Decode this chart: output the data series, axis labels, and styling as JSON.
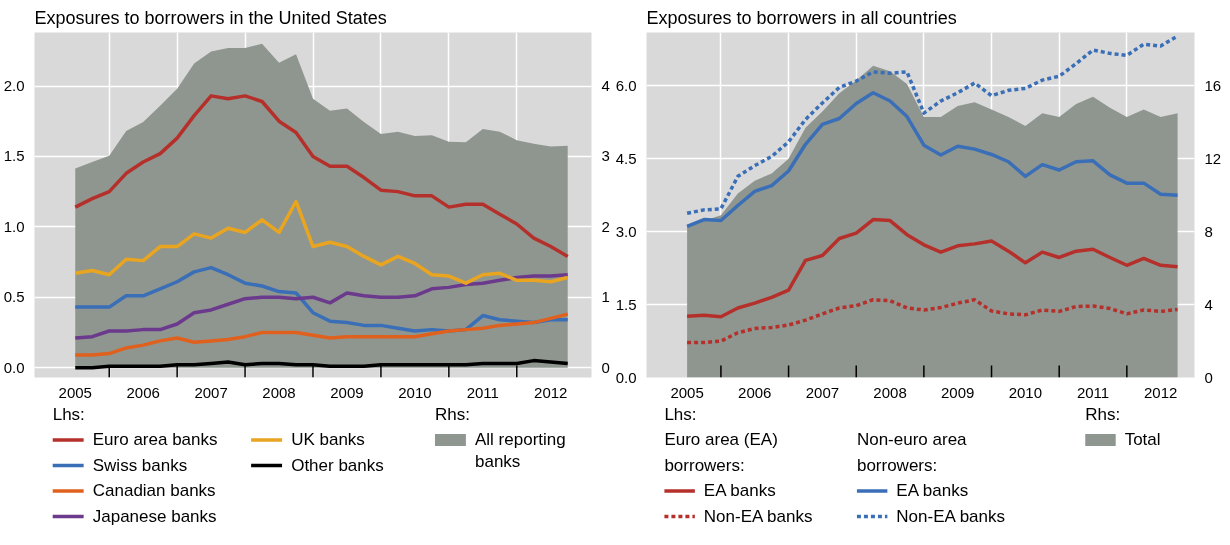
{
  "chart_data": [
    {
      "type": "line",
      "title": "Exposures to borrowers in the United States",
      "annotations": [
        "Lhs:",
        "Rhs:"
      ],
      "legend": "bottom",
      "grid": true,
      "x": [
        2005.5,
        2005.75,
        2006,
        2006.25,
        2006.5,
        2006.75,
        2007,
        2007.25,
        2007.5,
        2007.75,
        2008,
        2008.25,
        2008.5,
        2008.75,
        2009,
        2009.25,
        2009.5,
        2009.75,
        2010,
        2010.25,
        2010.5,
        2010.75,
        2011,
        2011.25,
        2011.5,
        2011.75,
        2012,
        2012.25,
        2012.5,
        2012.75
      ],
      "xlim": [
        2004.9,
        2013.1
      ],
      "xticks": [
        {
          "value": 2005.5,
          "label": "2005"
        },
        {
          "value": 2006,
          "label": null
        },
        {
          "value": 2006.5,
          "label": "2006"
        },
        {
          "value": 2007,
          "label": null
        },
        {
          "value": 2007.5,
          "label": "2007"
        },
        {
          "value": 2008,
          "label": null
        },
        {
          "value": 2008.5,
          "label": "2008"
        },
        {
          "value": 2009,
          "label": null
        },
        {
          "value": 2009.5,
          "label": "2009"
        },
        {
          "value": 2010,
          "label": null
        },
        {
          "value": 2010.5,
          "label": "2010"
        },
        {
          "value": 2011,
          "label": null
        },
        {
          "value": 2011.5,
          "label": "2011"
        },
        {
          "value": 2012,
          "label": null
        },
        {
          "value": 2012.5,
          "label": "2012"
        }
      ],
      "ylim": [
        -0.07,
        2.38
      ],
      "yticks": [
        {
          "value": 0,
          "label": "0.0"
        },
        0.5,
        {
          "value": 1,
          "label": "1.0"
        },
        1.5,
        {
          "value": 2,
          "label": "2.0"
        }
      ],
      "y2lim": [
        -0.14,
        4.76
      ],
      "y2ticks": [
        0,
        1,
        2,
        3,
        4
      ],
      "series": [
        {
          "name": "All reporting banks",
          "type": "area",
          "axis": "y2",
          "color": "#8f9690",
          "values": [
            2.83,
            2.92,
            3.01,
            3.36,
            3.49,
            3.72,
            3.96,
            4.32,
            4.49,
            4.54,
            4.54,
            4.6,
            4.33,
            4.45,
            3.82,
            3.65,
            3.68,
            3.49,
            3.32,
            3.35,
            3.29,
            3.3,
            3.21,
            3.2,
            3.39,
            3.35,
            3.23,
            3.18,
            3.14,
            3.15
          ]
        },
        {
          "name": "Euro area banks",
          "color": "#b5302b",
          "values": [
            1.14,
            1.2,
            1.25,
            1.38,
            1.46,
            1.52,
            1.63,
            1.79,
            1.93,
            1.91,
            1.93,
            1.89,
            1.75,
            1.67,
            1.5,
            1.43,
            1.43,
            1.35,
            1.26,
            1.25,
            1.22,
            1.22,
            1.14,
            1.16,
            1.16,
            1.09,
            1.02,
            0.92,
            0.86,
            0.79
          ]
        },
        {
          "name": "Swiss banks",
          "color": "#3a6fb7",
          "values": [
            0.43,
            0.43,
            0.43,
            0.51,
            0.51,
            0.56,
            0.61,
            0.68,
            0.71,
            0.66,
            0.6,
            0.58,
            0.54,
            0.53,
            0.39,
            0.33,
            0.32,
            0.3,
            0.3,
            0.28,
            0.26,
            0.27,
            0.26,
            0.27,
            0.37,
            0.34,
            0.33,
            0.32,
            0.34,
            0.34
          ]
        },
        {
          "name": "Canadian banks",
          "color": "#e0601e",
          "values": [
            0.09,
            0.09,
            0.1,
            0.14,
            0.16,
            0.19,
            0.21,
            0.18,
            0.19,
            0.2,
            0.22,
            0.25,
            0.25,
            0.25,
            0.23,
            0.21,
            0.22,
            0.22,
            0.22,
            0.22,
            0.22,
            0.24,
            0.26,
            0.27,
            0.28,
            0.3,
            0.31,
            0.32,
            0.35,
            0.38
          ]
        },
        {
          "name": "Japanese banks",
          "color": "#6b3a8c",
          "values": [
            0.21,
            0.22,
            0.26,
            0.26,
            0.27,
            0.27,
            0.31,
            0.39,
            0.41,
            0.45,
            0.49,
            0.5,
            0.5,
            0.49,
            0.5,
            0.46,
            0.53,
            0.51,
            0.5,
            0.5,
            0.51,
            0.56,
            0.57,
            0.59,
            0.6,
            0.62,
            0.64,
            0.65,
            0.65,
            0.66
          ]
        },
        {
          "name": "UK banks",
          "color": "#eaa520",
          "values": [
            0.67,
            0.69,
            0.66,
            0.77,
            0.76,
            0.86,
            0.86,
            0.95,
            0.92,
            0.99,
            0.96,
            1.05,
            0.96,
            1.18,
            0.86,
            0.89,
            0.86,
            0.79,
            0.73,
            0.79,
            0.74,
            0.66,
            0.65,
            0.6,
            0.66,
            0.67,
            0.62,
            0.62,
            0.61,
            0.64
          ]
        },
        {
          "name": "Other banks",
          "color": "#000000",
          "values": [
            0.0,
            0.0,
            0.01,
            0.01,
            0.01,
            0.01,
            0.02,
            0.02,
            0.03,
            0.04,
            0.02,
            0.03,
            0.03,
            0.02,
            0.02,
            0.01,
            0.01,
            0.01,
            0.02,
            0.02,
            0.02,
            0.02,
            0.02,
            0.02,
            0.03,
            0.03,
            0.03,
            0.05,
            0.04,
            0.03
          ]
        }
      ]
    },
    {
      "type": "line",
      "title": "Exposures to borrowers in all countries",
      "annotations": [
        "Lhs:",
        "Euro area (EA) borrowers:",
        "Non-euro area borrowers:",
        "Rhs:"
      ],
      "legend": "bottom",
      "grid": true,
      "x": [
        2005.5,
        2005.75,
        2006,
        2006.25,
        2006.5,
        2006.75,
        2007,
        2007.25,
        2007.5,
        2007.75,
        2008,
        2008.25,
        2008.5,
        2008.75,
        2009,
        2009.25,
        2009.5,
        2009.75,
        2010,
        2010.25,
        2010.5,
        2010.75,
        2011,
        2011.25,
        2011.5,
        2011.75,
        2012,
        2012.25,
        2012.5,
        2012.75
      ],
      "xlim": [
        2004.9,
        2013.0
      ],
      "xticks": [
        {
          "value": 2005.5,
          "label": "2005"
        },
        {
          "value": 2006,
          "label": null
        },
        {
          "value": 2006.5,
          "label": "2006"
        },
        {
          "value": 2007,
          "label": null
        },
        {
          "value": 2007.5,
          "label": "2007"
        },
        {
          "value": 2008,
          "label": null
        },
        {
          "value": 2008.5,
          "label": "2008"
        },
        {
          "value": 2009,
          "label": null
        },
        {
          "value": 2009.5,
          "label": "2009"
        },
        {
          "value": 2010,
          "label": null
        },
        {
          "value": 2010.5,
          "label": "2010"
        },
        {
          "value": 2011,
          "label": null
        },
        {
          "value": 2011.5,
          "label": "2011"
        },
        {
          "value": 2012,
          "label": null
        },
        {
          "value": 2012.5,
          "label": "2012"
        }
      ],
      "ylim": [
        0,
        7.1
      ],
      "yticks": [
        {
          "value": 0,
          "label": "0.0"
        },
        1.5,
        {
          "value": 3,
          "label": "3.0"
        },
        4.5,
        {
          "value": 6,
          "label": "6.0"
        }
      ],
      "y2lim": [
        0,
        18.93
      ],
      "y2ticks": [
        0,
        4,
        8,
        12,
        16
      ],
      "series": [
        {
          "name": "Total",
          "type": "area",
          "axis": "y2",
          "color": "#8f9690",
          "values": [
            8.3,
            8.6,
            8.9,
            10.1,
            10.8,
            11.2,
            12.0,
            13.7,
            14.6,
            15.6,
            16.3,
            17.1,
            16.8,
            16.1,
            14.3,
            14.3,
            14.9,
            15.1,
            14.7,
            14.3,
            13.8,
            14.5,
            14.3,
            15.0,
            15.4,
            14.8,
            14.3,
            14.7,
            14.3,
            14.5
          ]
        },
        {
          "name": "EA banks",
          "color": "#b5302b",
          "line_style": "solid",
          "values": [
            1.26,
            1.28,
            1.25,
            1.43,
            1.53,
            1.65,
            1.8,
            2.41,
            2.51,
            2.86,
            2.97,
            3.25,
            3.23,
            2.94,
            2.73,
            2.58,
            2.71,
            2.75,
            2.81,
            2.6,
            2.36,
            2.58,
            2.47,
            2.6,
            2.64,
            2.47,
            2.31,
            2.45,
            2.31,
            2.28
          ]
        },
        {
          "name": "Non-EA banks",
          "color": "#b5302b",
          "line_style": "dotted",
          "values": [
            0.72,
            0.72,
            0.75,
            0.92,
            1.01,
            1.03,
            1.08,
            1.18,
            1.31,
            1.43,
            1.48,
            1.6,
            1.58,
            1.43,
            1.39,
            1.44,
            1.53,
            1.6,
            1.37,
            1.31,
            1.29,
            1.39,
            1.36,
            1.46,
            1.47,
            1.42,
            1.31,
            1.39,
            1.36,
            1.4
          ]
        },
        {
          "name": "EA banks",
          "color": "#3a6fb7",
          "line_style": "solid",
          "values": [
            3.11,
            3.25,
            3.23,
            3.54,
            3.83,
            3.95,
            4.25,
            4.8,
            5.21,
            5.33,
            5.64,
            5.86,
            5.69,
            5.37,
            4.78,
            4.58,
            4.76,
            4.7,
            4.59,
            4.44,
            4.14,
            4.38,
            4.27,
            4.44,
            4.46,
            4.17,
            4.0,
            4.0,
            3.77,
            3.75
          ]
        },
        {
          "name": "Non-EA banks",
          "color": "#3a6fb7",
          "line_style": "dotted",
          "values": [
            3.38,
            3.45,
            3.47,
            4.14,
            4.36,
            4.55,
            4.85,
            5.31,
            5.65,
            5.97,
            6.1,
            6.29,
            6.26,
            6.29,
            5.44,
            5.69,
            5.86,
            6.06,
            5.8,
            5.91,
            5.95,
            6.12,
            6.2,
            6.46,
            6.74,
            6.67,
            6.63,
            6.86,
            6.82,
            7.03
          ]
        }
      ]
    }
  ]
}
